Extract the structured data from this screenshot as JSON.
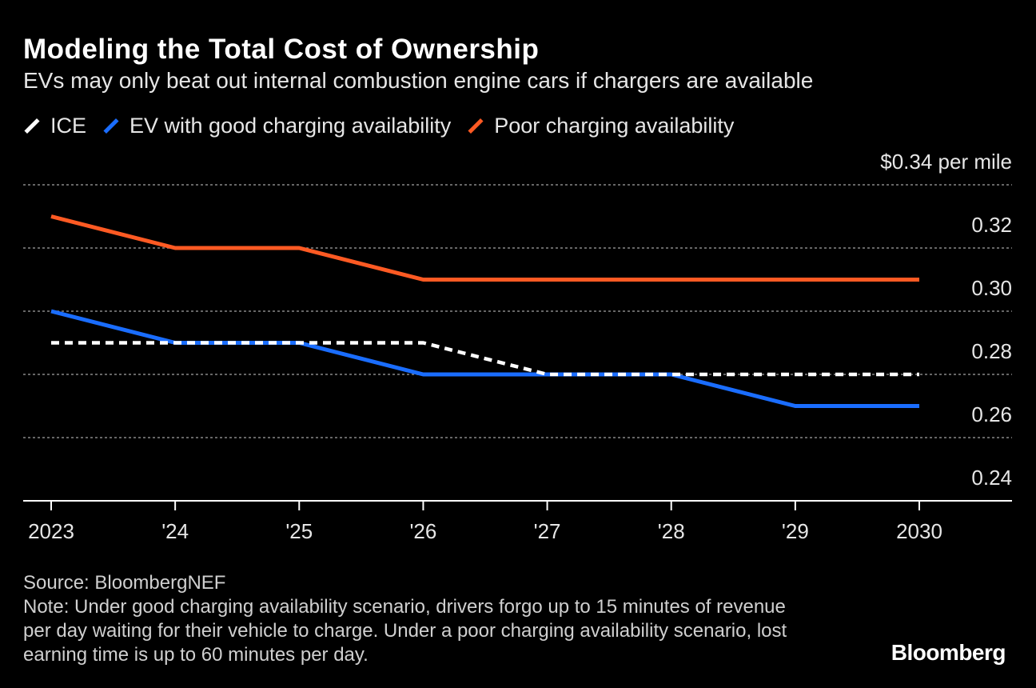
{
  "chart_data": {
    "type": "line",
    "title": "Modeling the Total Cost of Ownership",
    "subtitle": "EVs may only beat out internal combustion engine cars if chargers are available",
    "unit_label": "$0.34 per mile",
    "x": [
      "2023",
      "'24",
      "'25",
      "'26",
      "'27",
      "'28",
      "'29",
      "2030"
    ],
    "ylim": [
      0.24,
      0.34
    ],
    "yticks": [
      {
        "value": 0.34,
        "label": "$0.34 per mile"
      },
      {
        "value": 0.32,
        "label": "0.32"
      },
      {
        "value": 0.3,
        "label": "0.30"
      },
      {
        "value": 0.28,
        "label": "0.28"
      },
      {
        "value": 0.26,
        "label": "0.26"
      },
      {
        "value": 0.24,
        "label": "0.24"
      }
    ],
    "series": [
      {
        "name": "ICE",
        "color": "#ffffff",
        "dashed": true,
        "values": [
          0.29,
          0.29,
          0.29,
          0.29,
          0.28,
          0.28,
          0.28,
          0.28
        ]
      },
      {
        "name": "EV with good charging availability",
        "color": "#1a6dff",
        "dashed": false,
        "values": [
          0.3,
          0.29,
          0.29,
          0.28,
          0.28,
          0.28,
          0.27,
          0.27
        ]
      },
      {
        "name": "Poor charging availability",
        "color": "#ff5a23",
        "dashed": false,
        "values": [
          0.33,
          0.32,
          0.32,
          0.31,
          0.31,
          0.31,
          0.31,
          0.31
        ]
      }
    ],
    "legend": "top-left",
    "grid": true
  },
  "footer": {
    "source": "Source: BloombergNEF",
    "note": "Note: Under good charging availability scenario, drivers forgo up to 15 minutes of revenue per day waiting for their vehicle to charge. Under a poor charging availability scenario, lost earning time is up to 60 minutes per day."
  },
  "brand": "Bloomberg"
}
